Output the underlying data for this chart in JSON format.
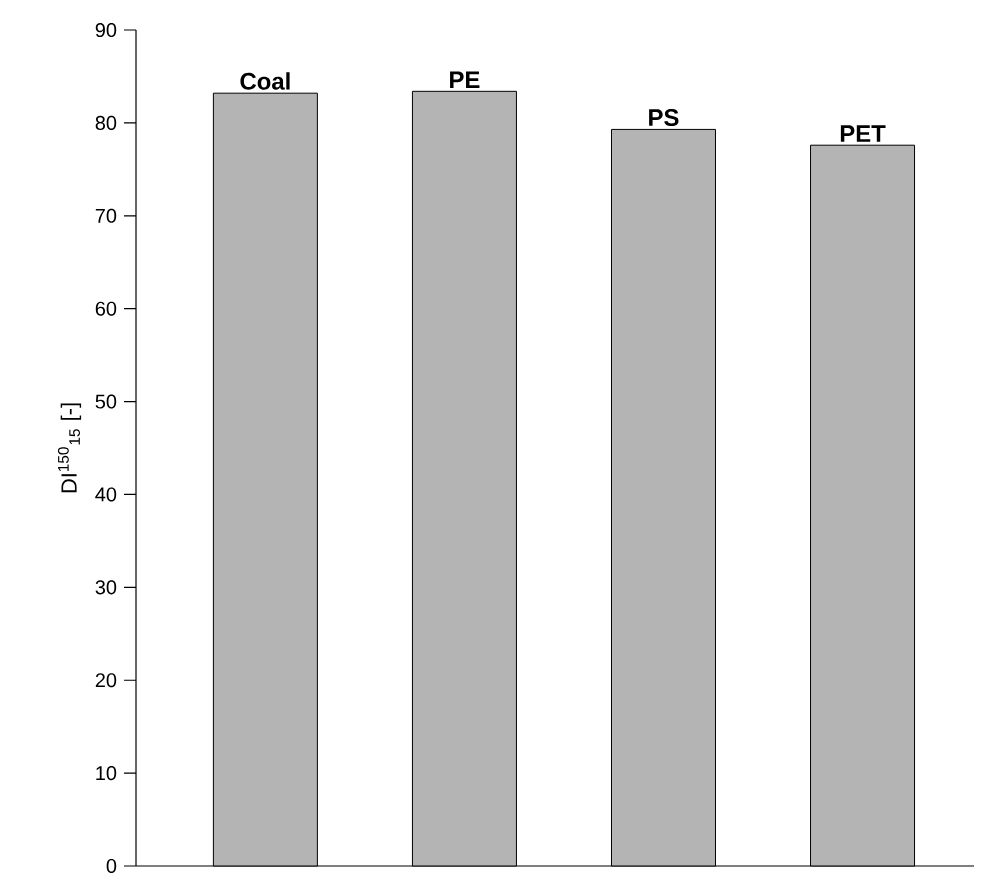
{
  "chart_data": {
    "type": "bar",
    "categories": [
      "Coal",
      "PE",
      "PS",
      "PET"
    ],
    "values": [
      83.2,
      83.4,
      79.3,
      77.6
    ],
    "color": "#b4b4b4",
    "ylabel": "DI$^{150}$$_{15}$ [-]",
    "ylim": [
      0,
      90
    ],
    "yticks": [
      0,
      10,
      20,
      30,
      40,
      50,
      60,
      70,
      80,
      90
    ]
  }
}
